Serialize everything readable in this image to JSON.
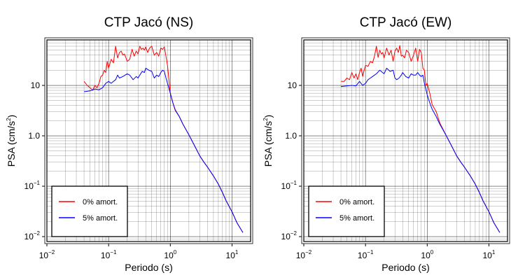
{
  "chart_data": [
    {
      "type": "line",
      "title": "CTP Jacó (NS)",
      "xlabel": "Periodo (s)",
      "ylabel": {
        "main": "PSA (cm/s",
        "sup": "2",
        "end": ")"
      },
      "xscale": "log",
      "yscale": "log",
      "xlim": [
        0.01,
        20
      ],
      "ylim": [
        0.008,
        80
      ],
      "grid": true,
      "legend_position": "bottom-left",
      "xticks": [
        {
          "base": "10",
          "exp": "−2"
        },
        {
          "base": "10",
          "exp": "−1"
        },
        {
          "base": "10",
          "exp": "0"
        },
        {
          "base": "10",
          "exp": "1"
        }
      ],
      "yticks": [
        {
          "text": "10",
          "base": "",
          "exp": ""
        },
        {
          "text": "10",
          "base": "",
          "exp": ""
        },
        {
          "text": "",
          "base": "10",
          "exp": "−1"
        },
        {
          "text": "",
          "base": "10",
          "exp": "−2"
        }
      ],
      "yticks_text": [
        "10",
        "1.0",
        "",
        ""
      ],
      "series": [
        {
          "name": "0% amort.",
          "color": "#ff0000",
          "x": [
            0.04,
            0.045,
            0.05,
            0.055,
            0.06,
            0.065,
            0.07,
            0.075,
            0.08,
            0.085,
            0.09,
            0.095,
            0.1,
            0.11,
            0.12,
            0.13,
            0.14,
            0.15,
            0.16,
            0.17,
            0.18,
            0.19,
            0.2,
            0.22,
            0.24,
            0.26,
            0.28,
            0.3,
            0.32,
            0.34,
            0.36,
            0.38,
            0.4,
            0.43,
            0.46,
            0.5,
            0.55,
            0.6,
            0.65,
            0.7,
            0.75,
            0.8,
            0.85,
            0.9,
            1.0,
            1.1,
            1.2,
            1.4,
            1.6,
            2.0,
            2.5,
            3.0,
            3.5,
            4.0,
            5.0,
            6.0,
            7.0,
            8.0,
            10.0,
            12.0,
            15.0
          ],
          "y": [
            12,
            10,
            9,
            8,
            10,
            9,
            11,
            15,
            16,
            20,
            18,
            30,
            22,
            33,
            28,
            60,
            35,
            45,
            48,
            40,
            42,
            36,
            30,
            33,
            52,
            38,
            48,
            42,
            60,
            52,
            55,
            50,
            58,
            45,
            55,
            60,
            40,
            45,
            38,
            55,
            52,
            58,
            38,
            25,
            7,
            4.5,
            3.2,
            2.4,
            1.7,
            1.05,
            0.62,
            0.4,
            0.3,
            0.24,
            0.16,
            0.11,
            0.075,
            0.052,
            0.031,
            0.019,
            0.012
          ]
        },
        {
          "name": "5% amort.",
          "color": "#0000ff",
          "x": [
            0.04,
            0.05,
            0.06,
            0.07,
            0.08,
            0.09,
            0.1,
            0.11,
            0.12,
            0.13,
            0.14,
            0.15,
            0.17,
            0.2,
            0.22,
            0.25,
            0.28,
            0.3,
            0.32,
            0.35,
            0.38,
            0.4,
            0.45,
            0.5,
            0.55,
            0.6,
            0.65,
            0.7,
            0.75,
            0.8,
            0.85,
            0.9,
            1.0,
            1.1,
            1.2,
            1.4,
            1.6,
            2.0,
            2.5,
            3.0,
            3.5,
            4.0,
            5.0,
            6.0,
            7.0,
            8.0,
            10.0,
            12.0,
            15.0
          ],
          "y": [
            7.5,
            7.8,
            8.5,
            8.2,
            9,
            11,
            12,
            11,
            12,
            13,
            16,
            14,
            15,
            17,
            16,
            13,
            15,
            14,
            16,
            19,
            18,
            22,
            20,
            19,
            14,
            16,
            15,
            18,
            20,
            19,
            14,
            11,
            7,
            4.5,
            3.3,
            2.4,
            1.7,
            1.05,
            0.62,
            0.4,
            0.3,
            0.24,
            0.16,
            0.11,
            0.075,
            0.052,
            0.031,
            0.019,
            0.012
          ]
        }
      ]
    },
    {
      "type": "line",
      "title": "CTP Jacó (EW)",
      "xlabel": "Periodo (s)",
      "ylabel": {
        "main": "PSA (cm/s",
        "sup": "2",
        "end": ")"
      },
      "xscale": "log",
      "yscale": "log",
      "xlim": [
        0.01,
        20
      ],
      "ylim": [
        0.008,
        80
      ],
      "grid": true,
      "legend_position": "bottom-left",
      "xticks": [
        {
          "base": "10",
          "exp": "−2"
        },
        {
          "base": "10",
          "exp": "−1"
        },
        {
          "base": "10",
          "exp": "0"
        },
        {
          "base": "10",
          "exp": "1"
        }
      ],
      "yticks": [
        {
          "text": "10",
          "base": "",
          "exp": ""
        },
        {
          "text": "10",
          "base": "",
          "exp": ""
        },
        {
          "text": "",
          "base": "10",
          "exp": "−1"
        },
        {
          "text": "",
          "base": "10",
          "exp": "−2"
        }
      ],
      "yticks_text": [
        "10",
        "1.0",
        "",
        ""
      ],
      "series": [
        {
          "name": "0% amort.",
          "color": "#ff0000",
          "x": [
            0.04,
            0.045,
            0.05,
            0.055,
            0.06,
            0.065,
            0.07,
            0.075,
            0.08,
            0.085,
            0.09,
            0.095,
            0.1,
            0.11,
            0.12,
            0.13,
            0.14,
            0.15,
            0.16,
            0.17,
            0.18,
            0.19,
            0.2,
            0.22,
            0.24,
            0.26,
            0.28,
            0.3,
            0.32,
            0.34,
            0.36,
            0.38,
            0.4,
            0.43,
            0.46,
            0.5,
            0.55,
            0.6,
            0.65,
            0.7,
            0.75,
            0.8,
            0.85,
            0.9,
            0.95,
            1.0,
            1.1,
            1.2,
            1.4,
            1.6,
            2.0,
            2.5,
            3.0,
            3.5,
            4.0,
            5.0,
            6.0,
            7.0,
            8.0,
            10.0,
            12.0,
            15.0
          ],
          "y": [
            12,
            12,
            14,
            13,
            18,
            14,
            17,
            13,
            18,
            22,
            15,
            20,
            25,
            24,
            30,
            28,
            38,
            60,
            36,
            50,
            42,
            45,
            35,
            55,
            40,
            50,
            30,
            48,
            55,
            45,
            62,
            38,
            40,
            35,
            50,
            45,
            30,
            40,
            55,
            30,
            52,
            45,
            22,
            20,
            10,
            11,
            7,
            4.2,
            3,
            1.8,
            1.05,
            0.62,
            0.4,
            0.3,
            0.24,
            0.16,
            0.11,
            0.075,
            0.052,
            0.031,
            0.019,
            0.012
          ]
        },
        {
          "name": "5% amort.",
          "color": "#0000ff",
          "x": [
            0.04,
            0.05,
            0.06,
            0.07,
            0.08,
            0.09,
            0.1,
            0.11,
            0.12,
            0.13,
            0.14,
            0.15,
            0.17,
            0.2,
            0.22,
            0.25,
            0.28,
            0.3,
            0.32,
            0.35,
            0.38,
            0.4,
            0.45,
            0.5,
            0.55,
            0.6,
            0.65,
            0.7,
            0.75,
            0.8,
            0.85,
            0.9,
            1.0,
            1.1,
            1.2,
            1.4,
            1.6,
            2.0,
            2.5,
            3.0,
            3.5,
            4.0,
            5.0,
            6.0,
            7.0,
            8.0,
            10.0,
            12.0,
            15.0
          ],
          "y": [
            9.5,
            9.8,
            10,
            9.8,
            12,
            10,
            11,
            13,
            14,
            15,
            16,
            17,
            20,
            17,
            22,
            19,
            20,
            14,
            13,
            14,
            16,
            18,
            15,
            14,
            17,
            16,
            16,
            18,
            16,
            15,
            16,
            11,
            6.5,
            4.5,
            3.4,
            2.4,
            1.7,
            1.05,
            0.62,
            0.4,
            0.3,
            0.24,
            0.16,
            0.11,
            0.075,
            0.052,
            0.031,
            0.019,
            0.012
          ]
        }
      ]
    }
  ]
}
